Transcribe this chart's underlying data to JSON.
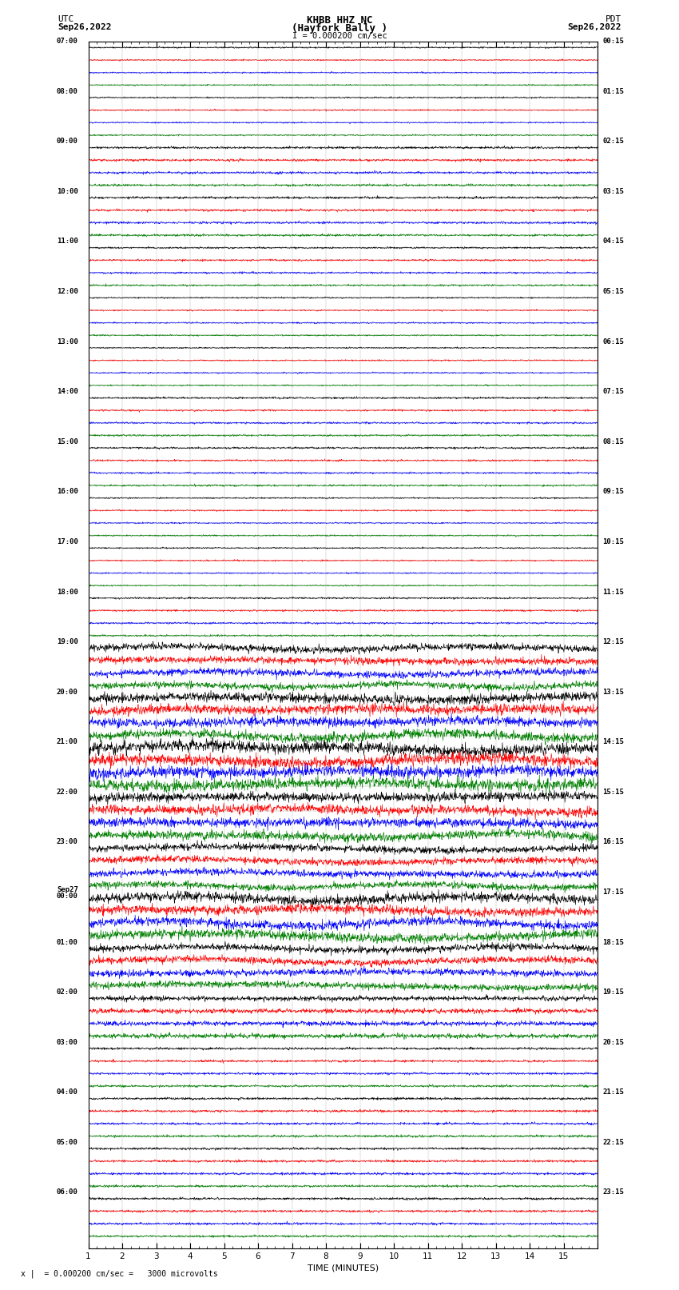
{
  "title_line1": "KHBB HHZ NC",
  "title_line2": "(Hayfork Bally )",
  "scale_text": "I = 0.000200 cm/sec",
  "bottom_text": "= 0.000200 cm/sec =   3000 microvolts",
  "utc_label": "UTC",
  "utc_date": "Sep26,2022",
  "pdt_label": "PDT",
  "pdt_date": "Sep26,2022",
  "xlabel": "TIME (MINUTES)",
  "left_times_major": [
    "07:00",
    "08:00",
    "09:00",
    "10:00",
    "11:00",
    "12:00",
    "13:00",
    "14:00",
    "15:00",
    "16:00",
    "17:00",
    "18:00",
    "19:00",
    "20:00",
    "21:00",
    "22:00",
    "23:00",
    "Sep27\n00:00",
    "01:00",
    "02:00",
    "03:00",
    "04:00",
    "05:00",
    "06:00"
  ],
  "right_times_major": [
    "00:15",
    "01:15",
    "02:15",
    "03:15",
    "04:15",
    "05:15",
    "06:15",
    "07:15",
    "08:15",
    "09:15",
    "10:15",
    "11:15",
    "12:15",
    "13:15",
    "14:15",
    "15:15",
    "16:15",
    "17:15",
    "18:15",
    "19:15",
    "20:15",
    "21:15",
    "22:15",
    "23:15"
  ],
  "n_hours": 24,
  "traces_per_hour": 4,
  "n_minutes": 15,
  "colors": [
    "black",
    "red",
    "blue",
    "green"
  ],
  "bg_color": "white",
  "noise_seed": 42,
  "fig_width": 8.5,
  "fig_height": 16.13,
  "dpi": 100
}
